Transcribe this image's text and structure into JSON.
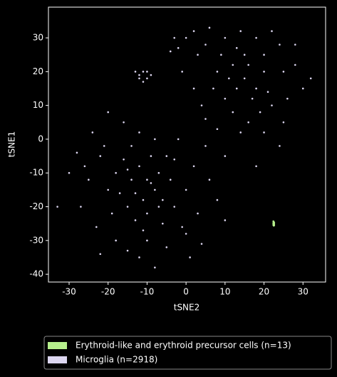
{
  "chart_data": {
    "type": "scatter",
    "xlabel": "tSNE2",
    "ylabel": "tSNE1",
    "xlim": [
      -35.3,
      35.8
    ],
    "ylim": [
      -42.3,
      39.1
    ],
    "xticks": [
      -30,
      -20,
      -10,
      0,
      10,
      20,
      30
    ],
    "yticks": [
      -40,
      -30,
      -20,
      -10,
      0,
      10,
      20,
      30
    ],
    "series": [
      {
        "name": "Erythroid-like and erythroid precursor cells (n=13)",
        "color": "#b6ef8c",
        "x": [
          22.4,
          22.5,
          22.6,
          22.5,
          22.4,
          22.6,
          22.5,
          22.5,
          22.4,
          22.6,
          22.5,
          22.5,
          22.4
        ],
        "y": [
          -24.3,
          -24.5,
          -24.7,
          -24.9,
          -25.0,
          -25.1,
          -25.2,
          -25.3,
          -25.4,
          -25.5,
          -25.6,
          -24.6,
          -24.8
        ]
      },
      {
        "name": "Microglia (n=2918)",
        "color": "#dcd6f0",
        "x": [
          -10,
          -12,
          -8,
          -15,
          -5,
          -18,
          -20,
          -25,
          -22,
          -14,
          -6,
          -10,
          -12,
          -8,
          -3,
          0,
          2,
          5,
          -2,
          -16,
          -20,
          -24,
          -28,
          -30,
          -27,
          -23,
          -18,
          -15,
          -5,
          0,
          3,
          6,
          8,
          -9,
          -11,
          -13,
          -7,
          -4,
          -17,
          -19,
          -21,
          -26,
          -12,
          -8,
          -3,
          -1,
          -10,
          -6,
          -14,
          -16,
          -33,
          -11,
          1,
          10,
          4,
          -22,
          -9,
          -13,
          -7,
          -15,
          15,
          12,
          18,
          20,
          10,
          8,
          5,
          0,
          3,
          -2,
          22,
          25,
          28,
          30,
          24,
          18,
          14,
          10,
          6,
          12,
          16,
          20,
          24,
          8,
          4,
          2,
          -1,
          -4,
          20,
          17,
          13,
          11,
          19,
          26,
          22,
          28,
          15,
          9,
          7,
          5,
          14,
          10,
          18,
          25,
          32,
          16,
          21,
          13,
          2,
          -3,
          -12,
          -11,
          -10,
          -11,
          -12,
          -10,
          -13,
          -9
        ],
        "y": [
          -12,
          -8,
          -15,
          -20,
          -5,
          -10,
          -15,
          -12,
          -5,
          -2,
          -25,
          -30,
          -35,
          -38,
          -20,
          -15,
          -8,
          -2,
          0,
          5,
          8,
          2,
          -4,
          -10,
          -20,
          -26,
          -30,
          -33,
          -32,
          -28,
          -22,
          -12,
          -18,
          -5,
          -18,
          -24,
          -10,
          -12,
          -16,
          -22,
          -2,
          -8,
          2,
          0,
          -6,
          -26,
          -22,
          -18,
          -12,
          -6,
          -20,
          -27,
          -35,
          -24,
          -31,
          -34,
          -13,
          -16,
          -20,
          -9,
          18,
          22,
          15,
          25,
          12,
          20,
          28,
          30,
          25,
          27,
          10,
          20,
          22,
          15,
          28,
          30,
          32,
          30,
          33,
          8,
          5,
          2,
          -2,
          3,
          10,
          15,
          20,
          26,
          20,
          12,
          15,
          18,
          8,
          12,
          32,
          28,
          25,
          25,
          15,
          6,
          2,
          -5,
          -8,
          5,
          18,
          22,
          14,
          27,
          32,
          30,
          19,
          20,
          18,
          17,
          18,
          20,
          20,
          19
        ]
      }
    ]
  }
}
